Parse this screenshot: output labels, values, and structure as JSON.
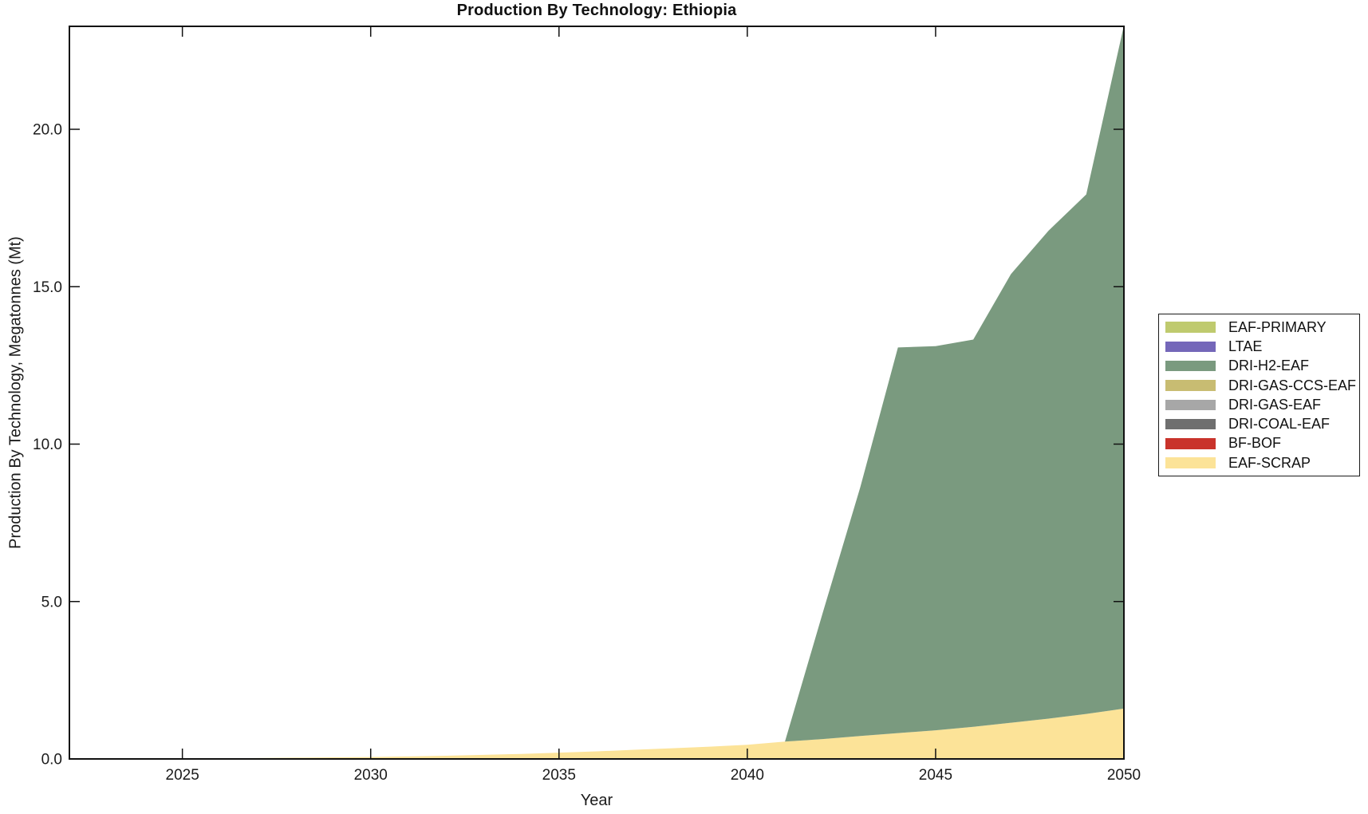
{
  "chart_data": {
    "type": "area",
    "stacked": true,
    "title": "Production By Technology: Ethiopia",
    "xlabel": "Year",
    "ylabel": "Production By Technology, Megatonnes (Mt)",
    "xlim": [
      2022,
      2050
    ],
    "ylim": [
      0,
      23.27
    ],
    "grid": false,
    "legend_position": "right-outside",
    "tick_direction": "in",
    "xticks": {
      "values": [
        2025,
        2030,
        2035,
        2040,
        2045,
        2050
      ],
      "labels": [
        "2025",
        "2030",
        "2035",
        "2040",
        "2045",
        "2050"
      ]
    },
    "yticks": {
      "values": [
        0,
        5,
        10,
        15,
        20
      ],
      "labels": [
        "0.0",
        "5.0",
        "10.0",
        "15.0",
        "20.0"
      ]
    },
    "x": [
      2022,
      2023,
      2024,
      2025,
      2026,
      2027,
      2028,
      2029,
      2030,
      2031,
      2032,
      2033,
      2034,
      2035,
      2036,
      2037,
      2038,
      2039,
      2040,
      2041,
      2042,
      2043,
      2044,
      2045,
      2046,
      2047,
      2048,
      2049,
      2050
    ],
    "series": [
      {
        "name": "EAF-PRIMARY",
        "color": "#BFCA6E",
        "values": [
          0,
          0,
          0,
          0,
          0,
          0,
          0,
          0,
          0,
          0,
          0,
          0,
          0,
          0,
          0,
          0,
          0,
          0,
          0,
          0,
          0,
          0,
          0,
          0,
          0,
          0,
          0,
          0,
          0
        ]
      },
      {
        "name": "LTAE",
        "color": "#7467B9",
        "values": [
          0,
          0,
          0,
          0,
          0,
          0,
          0,
          0,
          0,
          0,
          0,
          0,
          0,
          0,
          0,
          0,
          0,
          0,
          0,
          0,
          0,
          0,
          0,
          0,
          0,
          0,
          0,
          0,
          0
        ]
      },
      {
        "name": "DRI-H2-EAF",
        "color": "#7A9A7F",
        "values": [
          0,
          0,
          0,
          0,
          0,
          0,
          0,
          0,
          0,
          0,
          0,
          0,
          0,
          0,
          0,
          0,
          0,
          0,
          0,
          0,
          4.0,
          7.9,
          12.25,
          12.2,
          12.3,
          14.25,
          15.5,
          16.5,
          21.7
        ]
      },
      {
        "name": "DRI-GAS-CCS-EAF",
        "color": "#C8BC72",
        "values": [
          0,
          0,
          0,
          0,
          0,
          0,
          0,
          0,
          0,
          0,
          0,
          0,
          0,
          0,
          0,
          0,
          0,
          0,
          0,
          0,
          0,
          0,
          0,
          0,
          0,
          0,
          0,
          0,
          0
        ]
      },
      {
        "name": "DRI-GAS-EAF",
        "color": "#A7A7A7",
        "values": [
          0,
          0,
          0,
          0,
          0,
          0,
          0,
          0,
          0,
          0,
          0,
          0,
          0,
          0,
          0,
          0,
          0,
          0,
          0,
          0,
          0,
          0,
          0,
          0,
          0,
          0,
          0,
          0,
          0
        ]
      },
      {
        "name": "DRI-COAL-EAF",
        "color": "#6F6F6F",
        "values": [
          0,
          0,
          0,
          0,
          0,
          0,
          0,
          0,
          0,
          0,
          0,
          0,
          0,
          0,
          0,
          0,
          0,
          0,
          0,
          0,
          0,
          0,
          0,
          0,
          0,
          0,
          0,
          0,
          0
        ]
      },
      {
        "name": "BF-BOF",
        "color": "#C9332B",
        "values": [
          0,
          0,
          0,
          0,
          0,
          0,
          0,
          0,
          0,
          0,
          0,
          0,
          0,
          0,
          0,
          0,
          0,
          0,
          0,
          0,
          0,
          0,
          0,
          0,
          0,
          0,
          0,
          0,
          0
        ]
      },
      {
        "name": "EAF-SCRAP",
        "color": "#FCE398",
        "values": [
          0,
          0.005,
          0.01,
          0.015,
          0.02,
          0.03,
          0.04,
          0.05,
          0.06,
          0.08,
          0.1,
          0.13,
          0.16,
          0.2,
          0.24,
          0.29,
          0.34,
          0.39,
          0.45,
          0.55,
          0.63,
          0.73,
          0.82,
          0.91,
          1.02,
          1.15,
          1.28,
          1.43,
          1.6
        ]
      }
    ],
    "stack_order_note": "stacked bottom-to-top in reverse of legend order (EAF-SCRAP at bottom, EAF-PRIMARY at top)"
  }
}
